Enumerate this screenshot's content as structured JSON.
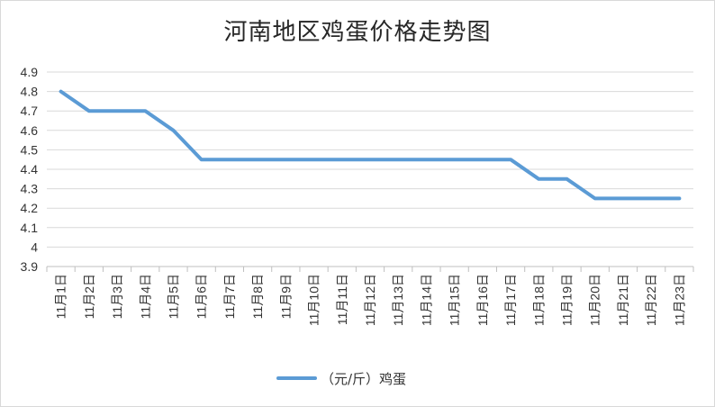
{
  "chart_data": {
    "type": "line",
    "title": "河南地区鸡蛋价格走势图",
    "categories": [
      "11月1日",
      "11月2日",
      "11月3日",
      "11月4日",
      "11月5日",
      "11月6日",
      "11月7日",
      "11月8日",
      "11月9日",
      "11月10日",
      "11月11日",
      "11月12日",
      "11月13日",
      "11月14日",
      "11月15日",
      "11月16日",
      "11月17日",
      "11月18日",
      "11月19日",
      "11月20日",
      "11月21日",
      "11月22日",
      "11月23日"
    ],
    "series": [
      {
        "name": "（元/斤）鸡蛋",
        "values": [
          4.8,
          4.7,
          4.7,
          4.7,
          4.6,
          4.45,
          4.45,
          4.45,
          4.45,
          4.45,
          4.45,
          4.45,
          4.45,
          4.45,
          4.45,
          4.45,
          4.45,
          4.35,
          4.35,
          4.25,
          4.25,
          4.25,
          4.25
        ],
        "color": "#5b9bd5"
      }
    ],
    "y_ticks": [
      "4.9",
      "4.8",
      "4.7",
      "4.6",
      "4.5",
      "4.4",
      "4.3",
      "4.2",
      "4.1",
      "4",
      "3.9"
    ],
    "ylim": [
      3.9,
      4.9
    ],
    "grid": true,
    "legend_position": "bottom"
  }
}
